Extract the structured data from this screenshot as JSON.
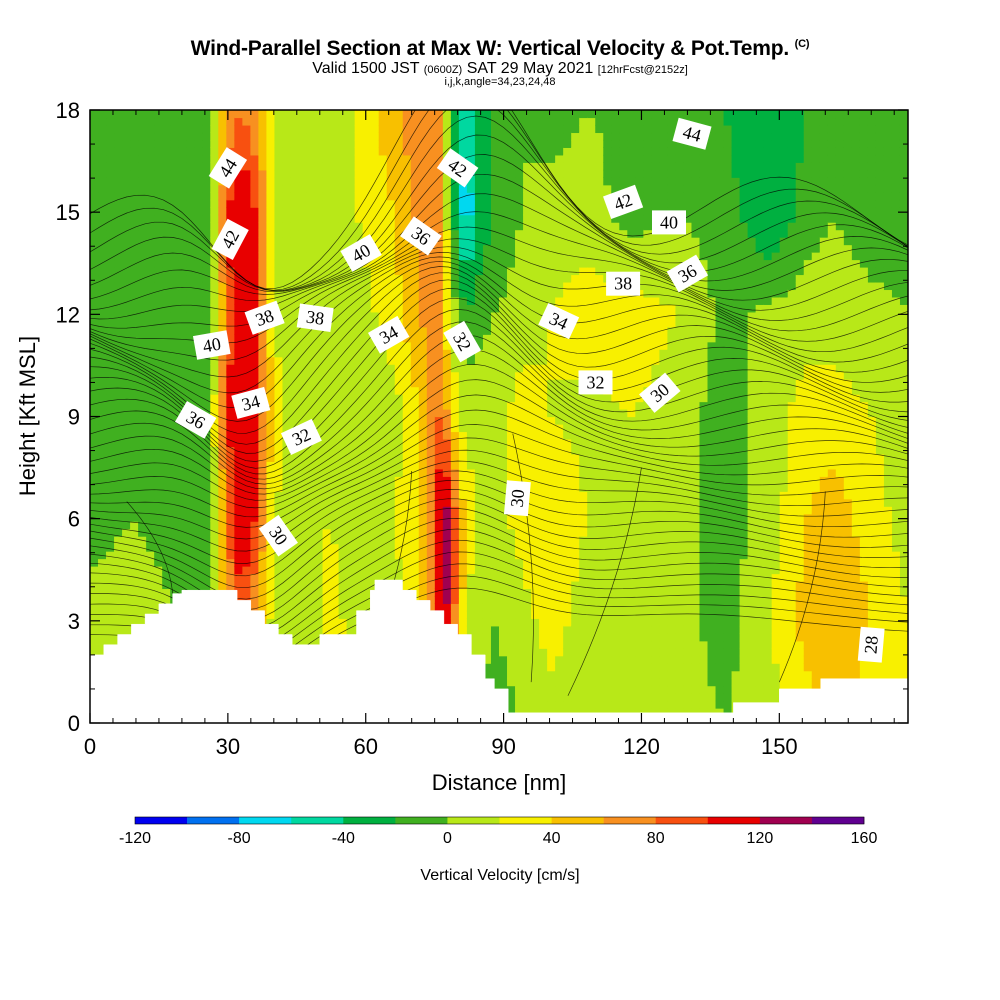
{
  "header": {
    "title": "Wind-Parallel Section at Max W: Vertical Velocity & Pot.Temp.",
    "copyright": "(C)",
    "valid_prefix": "Valid 1500 JST",
    "valid_z": "(0600Z)",
    "valid_date": "SAT 29 May 2021",
    "forecast": "[12hrFcst@2152z]",
    "indices": "i,j,k,angle=34,23,24,48"
  },
  "chart_data": {
    "type": "heatmap",
    "xlabel": "Distance [nm]",
    "ylabel": "Height [Kft MSL]",
    "xlim": [
      0,
      178
    ],
    "ylim": [
      0,
      18
    ],
    "x_ticks": [
      "0",
      "30",
      "60",
      "90",
      "120",
      "150"
    ],
    "y_ticks": [
      "0",
      "3",
      "6",
      "9",
      "12",
      "15",
      "18"
    ],
    "colorbar": {
      "label": "Vertical Velocity [cm/s]",
      "levels": [
        -120,
        -100,
        -80,
        -60,
        -40,
        -20,
        0,
        20,
        40,
        60,
        80,
        100,
        120,
        140,
        160
      ],
      "tick_labels": [
        "-120",
        "-80",
        "-40",
        "0",
        "40",
        "80",
        "120",
        "160"
      ],
      "colors": [
        "#0000f0",
        "#0070f0",
        "#00d8f0",
        "#00d8a0",
        "#00b040",
        "#40b020",
        "#b8e818",
        "#f8f000",
        "#f8c000",
        "#f89020",
        "#f85010",
        "#e80000",
        "#a00050",
        "#600090"
      ]
    },
    "vertical_velocity_cm_s": {
      "x": [
        0,
        10,
        20,
        26,
        30,
        33,
        36,
        40,
        46,
        52,
        58,
        62,
        66,
        70,
        74,
        76,
        78,
        80,
        82,
        84,
        88,
        94,
        100,
        108,
        118,
        128,
        138,
        148,
        156,
        162,
        170,
        178
      ],
      "z": [
        0,
        3,
        6,
        9,
        12,
        15,
        18
      ],
      "w": [
        [
          10,
          15,
          5,
          -10,
          20,
          40,
          30,
          10,
          0,
          30,
          10,
          5,
          5,
          20,
          40,
          60,
          50,
          30,
          10,
          0,
          -10,
          0,
          10,
          15,
          20,
          10,
          0,
          10,
          30,
          45,
          30,
          20
        ],
        [
          5,
          10,
          0,
          -20,
          60,
          100,
          60,
          10,
          0,
          30,
          10,
          0,
          10,
          30,
          60,
          110,
          120,
          60,
          20,
          10,
          0,
          10,
          30,
          10,
          20,
          10,
          -10,
          20,
          50,
          60,
          40,
          20
        ],
        [
          -5,
          0,
          -10,
          -10,
          80,
          120,
          100,
          20,
          10,
          20,
          10,
          10,
          20,
          30,
          70,
          120,
          130,
          70,
          30,
          20,
          10,
          30,
          40,
          20,
          15,
          10,
          -10,
          10,
          40,
          50,
          30,
          10
        ],
        [
          -5,
          -5,
          -10,
          -5,
          100,
          125,
          110,
          30,
          0,
          10,
          0,
          10,
          10,
          30,
          60,
          80,
          60,
          20,
          10,
          20,
          10,
          30,
          20,
          15,
          20,
          10,
          -10,
          10,
          30,
          30,
          20,
          5
        ],
        [
          -10,
          -5,
          -10,
          -20,
          90,
          125,
          110,
          20,
          0,
          10,
          10,
          20,
          30,
          50,
          70,
          60,
          20,
          0,
          -20,
          -10,
          0,
          10,
          20,
          30,
          30,
          20,
          -5,
          5,
          10,
          10,
          5,
          0
        ],
        [
          -10,
          -5,
          -20,
          -10,
          100,
          125,
          100,
          20,
          0,
          10,
          20,
          30,
          40,
          60,
          80,
          60,
          10,
          -40,
          -80,
          -40,
          -20,
          0,
          10,
          10,
          -10,
          0,
          -10,
          -40,
          -10,
          0,
          -10,
          -5
        ],
        [
          -10,
          -5,
          -10,
          0,
          60,
          80,
          60,
          20,
          0,
          10,
          20,
          40,
          50,
          70,
          80,
          60,
          0,
          -40,
          -60,
          -40,
          -20,
          0,
          -10,
          0,
          -5,
          0,
          -20,
          -40,
          -20,
          0,
          -10,
          -5
        ]
      ]
    },
    "potential_temperature_contours": [
      "28",
      "30",
      "32",
      "34",
      "36",
      "38",
      "40",
      "42",
      "44"
    ]
  }
}
